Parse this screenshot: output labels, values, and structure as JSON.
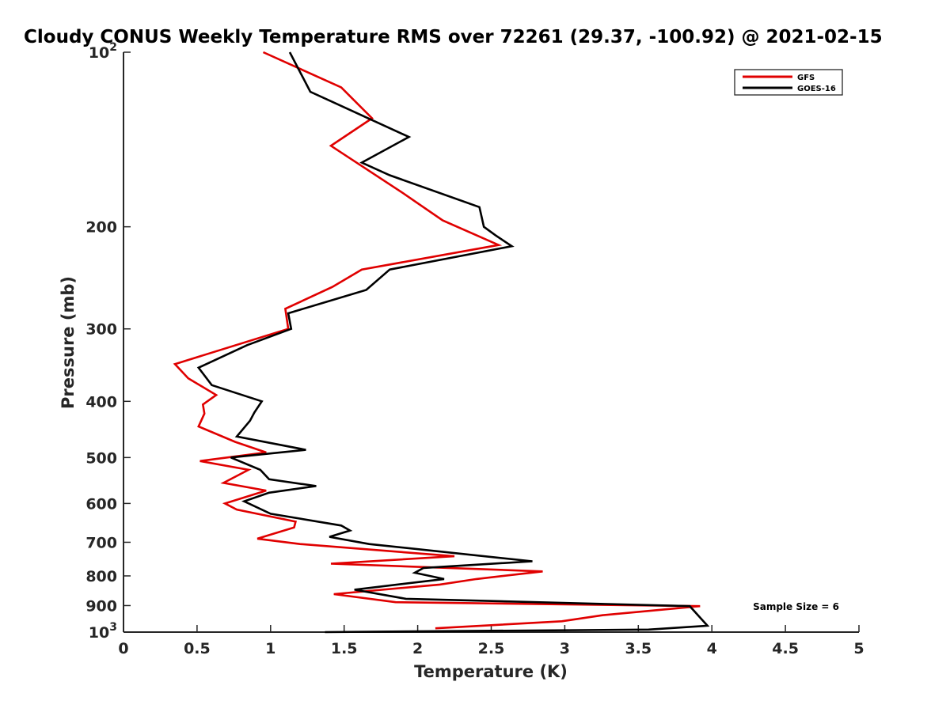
{
  "chart_data": {
    "type": "line",
    "title": "Cloudy CONUS Weekly Temperature RMS over 72261 (29.37, -100.92) @ 2021-02-15",
    "xlabel": "Temperature (K)",
    "ylabel": "Pressure (mb)",
    "xlim": [
      0,
      5
    ],
    "ylim": [
      100,
      1000
    ],
    "y_scale": "log",
    "y_reversed": true,
    "x_ticks": [
      0,
      0.5,
      1,
      1.5,
      2,
      2.5,
      3,
      3.5,
      4,
      4.5,
      5
    ],
    "x_tick_labels": [
      "0",
      "0.5",
      "1",
      "1.5",
      "2",
      "2.5",
      "3",
      "3.5",
      "4",
      "4.5",
      "5"
    ],
    "y_ticks": [
      100,
      200,
      300,
      400,
      500,
      600,
      700,
      800,
      900,
      1000
    ],
    "y_tick_labels": [
      {
        "base": "10",
        "exp": "2"
      },
      {
        "base": "200",
        "exp": ""
      },
      {
        "base": "300",
        "exp": ""
      },
      {
        "base": "400",
        "exp": ""
      },
      {
        "base": "500",
        "exp": ""
      },
      {
        "base": "600",
        "exp": ""
      },
      {
        "base": "700",
        "exp": ""
      },
      {
        "base": "800",
        "exp": ""
      },
      {
        "base": "900",
        "exp": ""
      },
      {
        "base": "10",
        "exp": "3"
      }
    ],
    "grid": false,
    "legend_position": "top-right",
    "annotation": "Sample Size = 6",
    "series": [
      {
        "name": "GFS",
        "color": "#e00000",
        "points": [
          [
            0.95,
            100
          ],
          [
            1.48,
            115
          ],
          [
            1.69,
            130
          ],
          [
            1.41,
            145
          ],
          [
            1.9,
            175
          ],
          [
            2.17,
            195
          ],
          [
            2.55,
            215
          ],
          [
            1.62,
            237
          ],
          [
            1.42,
            254
          ],
          [
            1.1,
            277
          ],
          [
            1.12,
            300
          ],
          [
            0.35,
            345
          ],
          [
            0.44,
            365
          ],
          [
            0.63,
            390
          ],
          [
            0.54,
            405
          ],
          [
            0.55,
            420
          ],
          [
            0.51,
            442
          ],
          [
            0.76,
            470
          ],
          [
            0.97,
            490
          ],
          [
            0.52,
            507
          ],
          [
            0.85,
            525
          ],
          [
            0.68,
            553
          ],
          [
            0.97,
            570
          ],
          [
            0.69,
            600
          ],
          [
            0.77,
            615
          ],
          [
            1.17,
            645
          ],
          [
            1.16,
            660
          ],
          [
            0.91,
            690
          ],
          [
            1.2,
            705
          ],
          [
            2.25,
            740
          ],
          [
            1.41,
            762
          ],
          [
            2.85,
            786
          ],
          [
            2.4,
            810
          ],
          [
            2.15,
            828
          ],
          [
            1.43,
            860
          ],
          [
            1.85,
            888
          ],
          [
            3.92,
            902
          ],
          [
            3.26,
            935
          ],
          [
            2.98,
            958
          ],
          [
            2.12,
            985
          ]
        ]
      },
      {
        "name": "GOES-16",
        "color": "#000000",
        "points": [
          [
            1.13,
            100
          ],
          [
            1.27,
            117
          ],
          [
            1.94,
            140
          ],
          [
            1.62,
            155
          ],
          [
            1.81,
            163
          ],
          [
            2.42,
            185
          ],
          [
            2.45,
            200
          ],
          [
            2.53,
            207
          ],
          [
            2.64,
            216
          ],
          [
            1.81,
            237
          ],
          [
            1.65,
            257
          ],
          [
            1.12,
            282
          ],
          [
            1.14,
            300
          ],
          [
            0.84,
            320
          ],
          [
            0.51,
            350
          ],
          [
            0.6,
            375
          ],
          [
            0.94,
            400
          ],
          [
            0.89,
            418
          ],
          [
            0.86,
            432
          ],
          [
            0.77,
            460
          ],
          [
            1.24,
            485
          ],
          [
            0.73,
            500
          ],
          [
            0.93,
            525
          ],
          [
            0.99,
            545
          ],
          [
            1.31,
            560
          ],
          [
            0.99,
            575
          ],
          [
            0.82,
            595
          ],
          [
            1.0,
            625
          ],
          [
            1.48,
            655
          ],
          [
            1.54,
            668
          ],
          [
            1.4,
            685
          ],
          [
            1.67,
            705
          ],
          [
            2.78,
            755
          ],
          [
            2.04,
            775
          ],
          [
            1.98,
            790
          ],
          [
            2.18,
            810
          ],
          [
            1.57,
            845
          ],
          [
            1.92,
            876
          ],
          [
            3.85,
            902
          ],
          [
            3.97,
            975
          ],
          [
            3.57,
            990
          ],
          [
            1.37,
            1000
          ]
        ]
      }
    ]
  }
}
